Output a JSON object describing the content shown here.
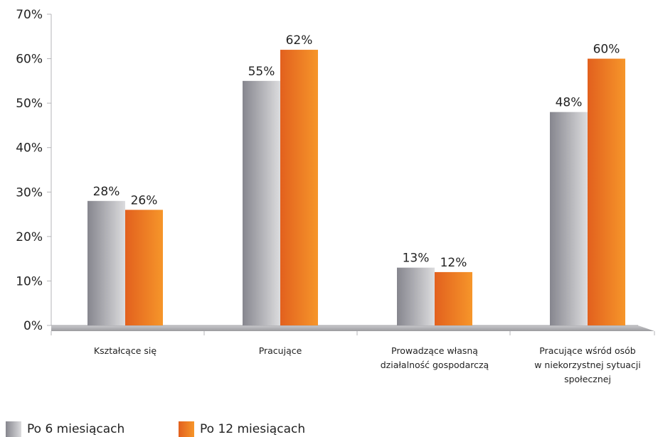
{
  "chart_data": {
    "type": "bar",
    "categories": [
      [
        "Kształcące się"
      ],
      [
        "Pracujące"
      ],
      [
        "Prowadzące własną",
        "działalność gospodarczą"
      ],
      [
        "Pracujące wśród osób",
        "w niekorzystnej sytuacji",
        "społecznej"
      ]
    ],
    "series": [
      {
        "name": "Po 6 miesiącach",
        "values": [
          28,
          55,
          13,
          48
        ],
        "labels": [
          "28%",
          "55%",
          "13%",
          "48%"
        ],
        "color_dark": "#86868e",
        "color_light": "#dcdcde"
      },
      {
        "name": "Po 12 miesiącach",
        "values": [
          26,
          62,
          12,
          60
        ],
        "labels": [
          "26%",
          "62%",
          "12%",
          "60%"
        ],
        "color_dark": "#e2601e",
        "color_light": "#f6962a"
      }
    ],
    "y_ticks": [
      "0%",
      "10%",
      "20%",
      "30%",
      "40%",
      "50%",
      "60%",
      "70%"
    ],
    "ylim": [
      0,
      70
    ],
    "title": "",
    "xlabel": "",
    "ylabel": "",
    "grid": false,
    "legend_position": "bottom-left"
  }
}
